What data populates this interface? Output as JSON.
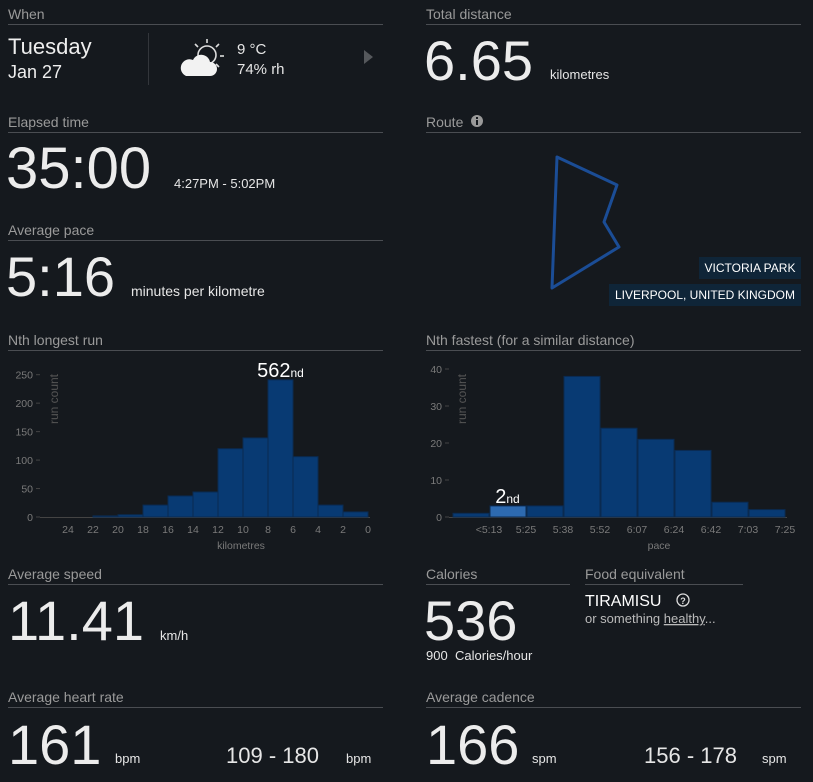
{
  "when": {
    "label": "When",
    "day": "Tuesday",
    "date": "Jan 27",
    "temperature": "9 °C",
    "humidity": "74% rh"
  },
  "total_distance": {
    "label": "Total distance",
    "value": "6.65",
    "unit": "kilometres"
  },
  "elapsed_time": {
    "label": "Elapsed time",
    "value": "35:00",
    "range": "4:27PM - 5:02PM"
  },
  "route": {
    "label": "Route",
    "place": "VICTORIA PARK",
    "city": "LIVERPOOL, UNITED KINGDOM"
  },
  "average_pace": {
    "label": "Average pace",
    "value": "5:16",
    "unit": "minutes per kilometre"
  },
  "chart_data": [
    {
      "type": "histogram",
      "title": "Nth longest run",
      "ylabel": "run count",
      "xlabel": "kilometres",
      "bins": [
        0,
        2,
        4,
        6,
        8,
        10,
        12,
        14,
        16,
        18,
        20,
        22
      ],
      "values": [
        9,
        21,
        106,
        241,
        139,
        120,
        44,
        37,
        21,
        4,
        2
      ],
      "color": "#083a73",
      "xlim": [
        26,
        0
      ],
      "xticks": [
        24,
        22,
        20,
        18,
        16,
        14,
        12,
        10,
        8,
        6,
        4,
        2,
        0
      ],
      "ylim": [
        0,
        260
      ],
      "yticks": [
        0,
        50,
        100,
        150,
        200,
        250
      ],
      "annotation": {
        "text": "562",
        "suffix": "nd"
      }
    },
    {
      "type": "bar",
      "title": "Nth fastest (for a similar distance)",
      "ylabel": "run count",
      "xlabel": "pace",
      "categories": [
        "<5:13",
        "5:25",
        "5:38",
        "5:52",
        "6:07",
        "6:24",
        "6:42",
        "7:03",
        "7:25"
      ],
      "values": [
        1,
        3,
        3,
        38,
        24,
        21,
        18,
        4,
        2
      ],
      "colors": [
        "#083a73",
        "#2d6ab0",
        "#083a73",
        "#083a73",
        "#083a73",
        "#083a73",
        "#083a73",
        "#083a73",
        "#083a73"
      ],
      "ylim": [
        0,
        40
      ],
      "yticks": [
        0,
        10,
        20,
        30,
        40
      ],
      "annotation": {
        "text": "2",
        "suffix": "nd"
      }
    }
  ],
  "average_speed": {
    "label": "Average speed",
    "value": "11.41",
    "unit": "km/h"
  },
  "calories": {
    "label": "Calories",
    "value": "536",
    "rate": "900",
    "rate_unit": "Calories/hour"
  },
  "food": {
    "label": "Food equivalent",
    "item": "TIRAMISU",
    "prefix": "or something",
    "link": "healthy",
    "suffix": "..."
  },
  "heart_rate": {
    "label": "Average heart rate",
    "value": "161",
    "unit": "bpm",
    "range": "109 - 180",
    "range_unit": "bpm"
  },
  "cadence": {
    "label": "Average cadence",
    "value": "166",
    "unit": "spm",
    "range": "156 - 178",
    "range_unit": "spm"
  }
}
